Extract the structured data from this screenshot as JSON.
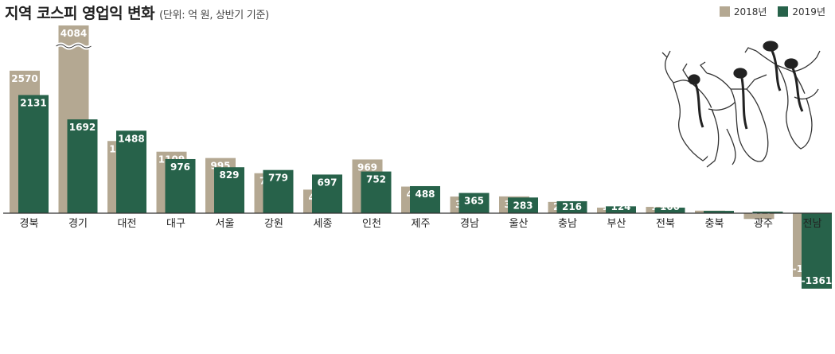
{
  "title": "지역 코스피 영업익 변화",
  "subtitle": "(단위: 억 원, 상반기 기준)",
  "colors": {
    "y2018": "#b4a892",
    "y2019": "#27624a",
    "axis": "#333333"
  },
  "chart_data": {
    "type": "bar",
    "categories": [
      "경북",
      "경기",
      "대전",
      "대구",
      "서울",
      "강원",
      "세종",
      "인천",
      "제주",
      "경남",
      "울산",
      "충남",
      "부산",
      "전북",
      "충북",
      "광주",
      "전남"
    ],
    "series": [
      {
        "name": "2018년",
        "values": [
          2570,
          4084,
          1302,
          1109,
          995,
          721,
          425,
          969,
          480,
          300,
          303,
          203,
          100,
          114,
          46,
          -104,
          -1147
        ]
      },
      {
        "name": "2019년",
        "values": [
          2131,
          1692,
          1488,
          976,
          829,
          779,
          697,
          752,
          488,
          365,
          283,
          216,
          124,
          100,
          42,
          28,
          -1361
        ]
      }
    ],
    "axis_break": {
      "category": "경기",
      "series": "2018년"
    },
    "legend_position": "top-right",
    "grid": false
  }
}
